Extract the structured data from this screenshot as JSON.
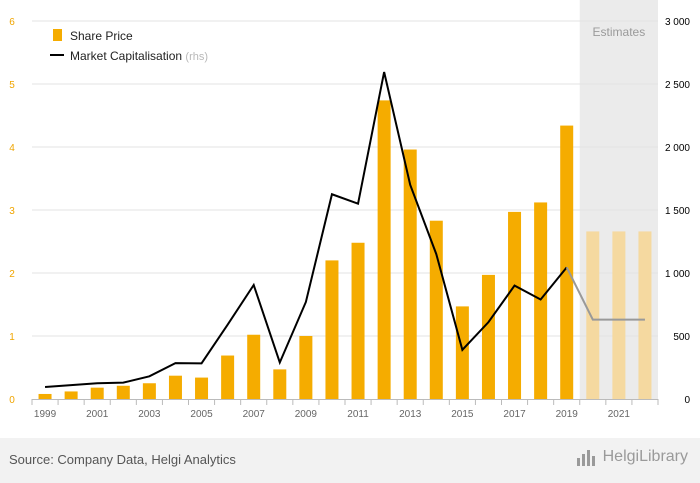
{
  "chart_data": {
    "type": "bar",
    "categories": [
      "1999",
      "2000",
      "2001",
      "2002",
      "2003",
      "2004",
      "2005",
      "2006",
      "2007",
      "2008",
      "2009",
      "2010",
      "2011",
      "2012",
      "2013",
      "2014",
      "2015",
      "2016",
      "2017",
      "2018",
      "2019",
      "2020",
      "2021",
      "2022"
    ],
    "x_tick_labels": [
      "1999",
      "2001",
      "2003",
      "2005",
      "2007",
      "2009",
      "2011",
      "2013",
      "2015",
      "2017",
      "2019",
      "2021"
    ],
    "series": [
      {
        "name": "Share Price",
        "type": "bar",
        "axis": "left",
        "color": "#f5ac00",
        "estimate_color": "#f5d9a0",
        "values": [
          0.08,
          0.12,
          0.18,
          0.21,
          0.25,
          0.37,
          0.34,
          0.69,
          1.02,
          0.47,
          1.0,
          2.2,
          2.48,
          4.74,
          3.96,
          2.83,
          1.47,
          1.97,
          2.97,
          3.12,
          4.34,
          2.66,
          2.66,
          2.66
        ]
      },
      {
        "name": "Market Capitalisation",
        "name_suffix": "(rhs)",
        "type": "line",
        "axis": "right",
        "color": "#000000",
        "estimate_color": "#999999",
        "values": [
          95,
          110,
          125,
          130,
          180,
          285,
          283,
          590,
          905,
          290,
          770,
          1625,
          1550,
          2595,
          1700,
          1150,
          390,
          610,
          900,
          790,
          1045,
          630,
          630,
          630
        ]
      }
    ],
    "y_left": {
      "ylim": [
        0,
        6
      ],
      "ticks": [
        "0",
        "1",
        "2",
        "3",
        "4",
        "5",
        "6"
      ],
      "tick_values": [
        0,
        1,
        2,
        3,
        4,
        5,
        6
      ],
      "color": "#f0a500"
    },
    "y_right": {
      "ylim": [
        0,
        3000
      ],
      "ticks": [
        "0",
        "500",
        "1 000",
        "1 500",
        "2 000",
        "2 500",
        "3 000"
      ],
      "tick_values": [
        0,
        500,
        1000,
        1500,
        2000,
        2500,
        3000
      ]
    },
    "estimates": {
      "label": "Estimates",
      "start_category": "2020"
    },
    "legend_placement": "top-left",
    "grid": "horizontal"
  },
  "footer": {
    "source": "Source: Company Data, Helgi Analytics",
    "logo_text": "HelgiLibrary"
  }
}
